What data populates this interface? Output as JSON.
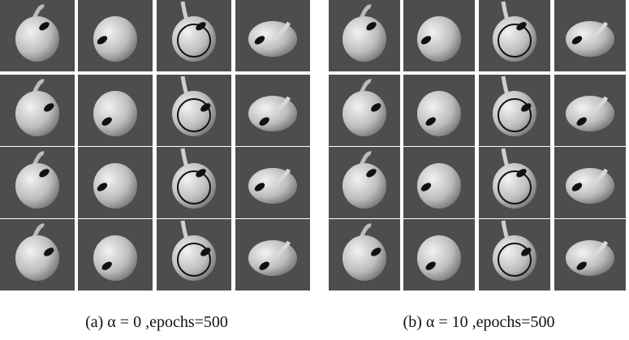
{
  "figure": {
    "panels": [
      {
        "caption": "(a) α = 0 ,epochs=500"
      },
      {
        "caption": "(b) α = 10 ,epochs=500"
      }
    ]
  }
}
